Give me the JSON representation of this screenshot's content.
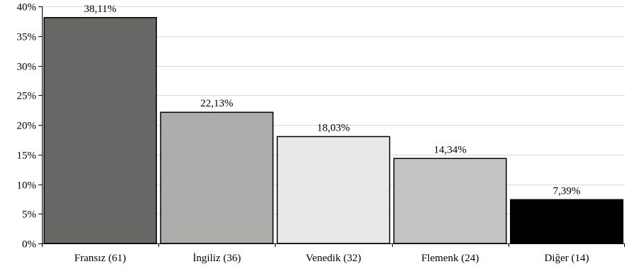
{
  "chart_data": {
    "type": "bar",
    "categories": [
      "Fransız (61)",
      "İngiliz (36)",
      "Venedik (32)",
      "Flemenk (24)",
      "Diğer (14)"
    ],
    "values": [
      38.11,
      22.13,
      18.03,
      14.34,
      7.39
    ],
    "value_labels": [
      "38,11%",
      "22,13%",
      "18,03%",
      "14,34%",
      "7,39%"
    ],
    "bar_colors": [
      "#676866",
      "#acacaa",
      "#e8e8e8",
      "#c3c3c3",
      "#000000"
    ],
    "ylim": [
      0,
      40
    ],
    "y_ticks": [
      0,
      5,
      10,
      15,
      20,
      25,
      30,
      35,
      40
    ],
    "y_tick_labels": [
      "0%",
      "5%",
      "10%",
      "15%",
      "20%",
      "25%",
      "30%",
      "35%",
      "40%"
    ],
    "title": "",
    "xlabel": "",
    "ylabel": "",
    "grid": true,
    "legend": "none"
  }
}
